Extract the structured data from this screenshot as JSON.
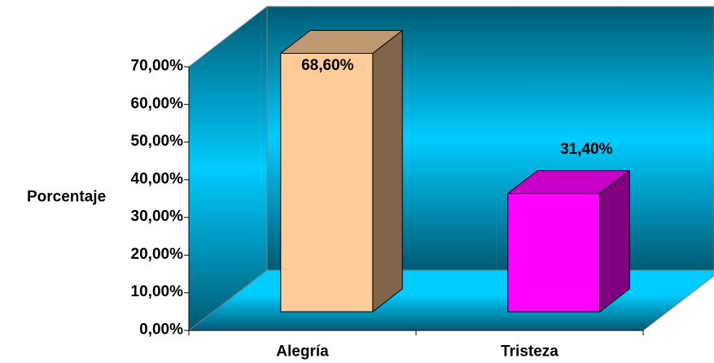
{
  "chart_data": {
    "type": "bar",
    "three_d": true,
    "ylabel": "Porcentaje",
    "categories": [
      "Alegría",
      "Tristeza"
    ],
    "values": [
      68.6,
      31.4
    ],
    "data_labels": [
      "68,60%",
      "31,40%"
    ],
    "ylim": [
      0,
      70
    ],
    "yticks": [
      0,
      10,
      20,
      30,
      40,
      50,
      60,
      70
    ],
    "ytick_labels": [
      "0,00%",
      "10,00%",
      "20,00%",
      "30,00%",
      "40,00%",
      "50,00%",
      "60,00%",
      "70,00%"
    ],
    "grid": false,
    "bar_colors": [
      {
        "front": "#FFCC99",
        "top": "#BF9972",
        "side": "#7F6549"
      },
      {
        "front": "#FF00FF",
        "top": "#C800C8",
        "side": "#800080"
      }
    ],
    "wall_colors": {
      "dark": "#005a73",
      "light": "#00ccff"
    }
  }
}
